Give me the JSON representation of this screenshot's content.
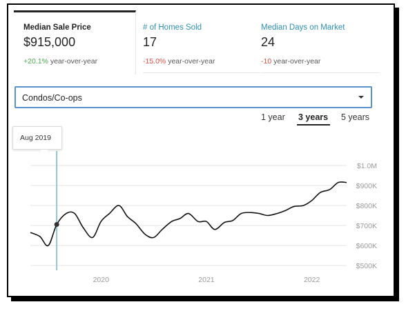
{
  "stats": [
    {
      "title": "Median Sale Price",
      "value": "$915,000",
      "change": "+20.1%",
      "change_suffix": " year-over-year",
      "change_color": "#4aa84a",
      "selected": true
    },
    {
      "title": "# of Homes Sold",
      "value": "17",
      "change": "-15.0%",
      "change_suffix": " year-over-year",
      "change_color": "#e24a3b"
    },
    {
      "title": "Median Days on Market",
      "value": "24",
      "change": "-10",
      "change_suffix": " year-over-year",
      "change_color": "#e24a3b"
    }
  ],
  "property_type": {
    "selected": "Condos/Co-ops"
  },
  "ranges": {
    "items": [
      "1 year",
      "3 years",
      "5 years"
    ],
    "selected": "3 years"
  },
  "tooltip": {
    "label": "Aug 2019"
  },
  "colors": {
    "accent": "#2d8fb3",
    "select_border": "#5b8fd4",
    "cursor_line": "#6bb7c9",
    "line": "#111111"
  },
  "chart_data": {
    "type": "line",
    "title": "",
    "xlabel": "",
    "ylabel": "",
    "x_ticks": [
      "2020",
      "2021",
      "2022"
    ],
    "y_ticks": [
      "$500K",
      "$600K",
      "$700K",
      "$800K",
      "$900K",
      "$1.0M"
    ],
    "ylim": [
      500000,
      1000000
    ],
    "grid": true,
    "series": [
      {
        "values_x": [
          2019.33,
          2019.42,
          2019.5,
          2019.58,
          2019.67,
          2019.75,
          2019.83,
          2019.92,
          2020.0,
          2020.08,
          2020.17,
          2020.25,
          2020.33,
          2020.42,
          2020.5,
          2020.58,
          2020.67,
          2020.75,
          2020.83,
          2020.92,
          2021.0,
          2021.08,
          2021.17,
          2021.25,
          2021.33,
          2021.42,
          2021.5,
          2021.58,
          2021.67,
          2021.75,
          2021.83,
          2021.92,
          2022.0,
          2022.08,
          2022.17,
          2022.25,
          2022.33
        ],
        "values_y": [
          665000,
          645000,
          600000,
          705000,
          760000,
          760000,
          690000,
          640000,
          720000,
          760000,
          800000,
          745000,
          710000,
          655000,
          640000,
          680000,
          720000,
          735000,
          760000,
          720000,
          720000,
          680000,
          715000,
          725000,
          760000,
          765000,
          760000,
          750000,
          760000,
          775000,
          795000,
          800000,
          825000,
          865000,
          880000,
          915000,
          915000
        ]
      }
    ],
    "highlight_point": {
      "x": 2019.58,
      "y": 705000
    }
  }
}
